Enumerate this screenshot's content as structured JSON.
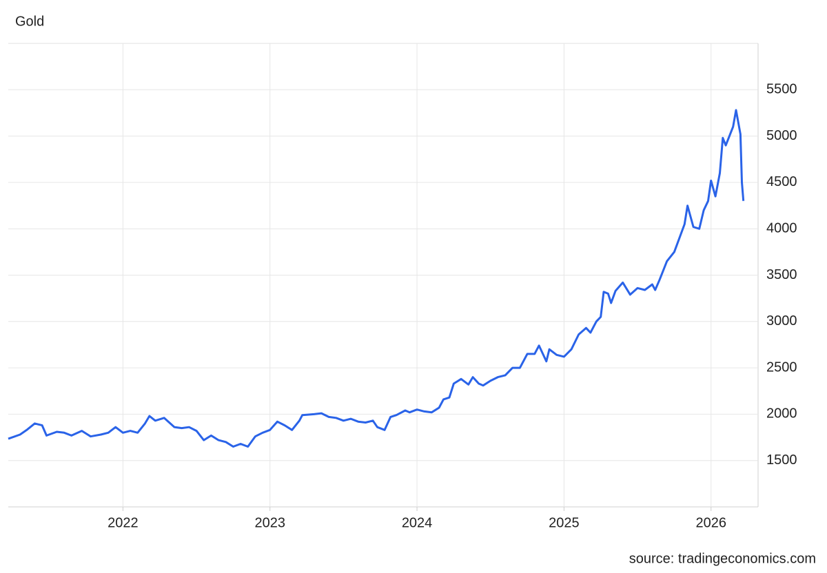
{
  "chart_data": {
    "type": "line",
    "title": "Gold",
    "source": "source: tradingeconomics.com",
    "color": "#2a63e8",
    "grid": true,
    "xlim": [
      2021.22,
      2026.32
    ],
    "xticks": [
      2022,
      2023,
      2024,
      2025,
      2026
    ],
    "ylim": [
      1000,
      6000
    ],
    "yticks": [
      1500,
      2000,
      2500,
      3000,
      3500,
      4000,
      4500,
      5000,
      5500
    ],
    "x": [
      2021.22,
      2021.3,
      2021.35,
      2021.4,
      2021.45,
      2021.48,
      2021.55,
      2021.6,
      2021.65,
      2021.72,
      2021.78,
      2021.85,
      2021.9,
      2021.95,
      2022.0,
      2022.05,
      2022.1,
      2022.15,
      2022.18,
      2022.22,
      2022.28,
      2022.35,
      2022.4,
      2022.45,
      2022.5,
      2022.55,
      2022.6,
      2022.65,
      2022.7,
      2022.75,
      2022.8,
      2022.85,
      2022.9,
      2022.95,
      2023.0,
      2023.05,
      2023.1,
      2023.15,
      2023.2,
      2023.22,
      2023.3,
      2023.35,
      2023.4,
      2023.45,
      2023.5,
      2023.55,
      2023.6,
      2023.65,
      2023.7,
      2023.73,
      2023.78,
      2023.82,
      2023.86,
      2023.92,
      2023.95,
      2024.0,
      2024.05,
      2024.1,
      2024.15,
      2024.18,
      2024.22,
      2024.25,
      2024.3,
      2024.35,
      2024.38,
      2024.42,
      2024.45,
      2024.5,
      2024.55,
      2024.6,
      2024.65,
      2024.7,
      2024.75,
      2024.8,
      2024.83,
      2024.88,
      2024.9,
      2024.95,
      2025.0,
      2025.05,
      2025.1,
      2025.15,
      2025.18,
      2025.22,
      2025.25,
      2025.27,
      2025.3,
      2025.32,
      2025.35,
      2025.4,
      2025.45,
      2025.5,
      2025.55,
      2025.6,
      2025.62,
      2025.65,
      2025.7,
      2025.75,
      2025.82,
      2025.84,
      2025.88,
      2025.92,
      2025.95,
      2025.98,
      2026.0,
      2026.03,
      2026.06,
      2026.08,
      2026.1,
      2026.15,
      2026.17,
      2026.2,
      2026.21,
      2026.22
    ],
    "values": [
      1735,
      1780,
      1835,
      1900,
      1880,
      1770,
      1810,
      1800,
      1770,
      1820,
      1760,
      1780,
      1800,
      1860,
      1800,
      1820,
      1800,
      1900,
      1980,
      1930,
      1960,
      1860,
      1850,
      1860,
      1820,
      1720,
      1770,
      1720,
      1700,
      1650,
      1680,
      1650,
      1760,
      1800,
      1830,
      1920,
      1880,
      1830,
      1930,
      1990,
      2000,
      2010,
      1970,
      1960,
      1930,
      1950,
      1920,
      1910,
      1930,
      1860,
      1830,
      1970,
      1990,
      2040,
      2020,
      2050,
      2030,
      2020,
      2070,
      2160,
      2180,
      2330,
      2380,
      2320,
      2400,
      2330,
      2310,
      2360,
      2400,
      2420,
      2500,
      2500,
      2650,
      2650,
      2740,
      2570,
      2700,
      2640,
      2620,
      2700,
      2860,
      2930,
      2880,
      3000,
      3050,
      3320,
      3300,
      3200,
      3330,
      3420,
      3290,
      3360,
      3340,
      3400,
      3340,
      3450,
      3650,
      3750,
      4050,
      4250,
      4020,
      4000,
      4200,
      4300,
      4520,
      4350,
      4600,
      4980,
      4900,
      5100,
      5280,
      5020,
      4500,
      4300
    ]
  }
}
